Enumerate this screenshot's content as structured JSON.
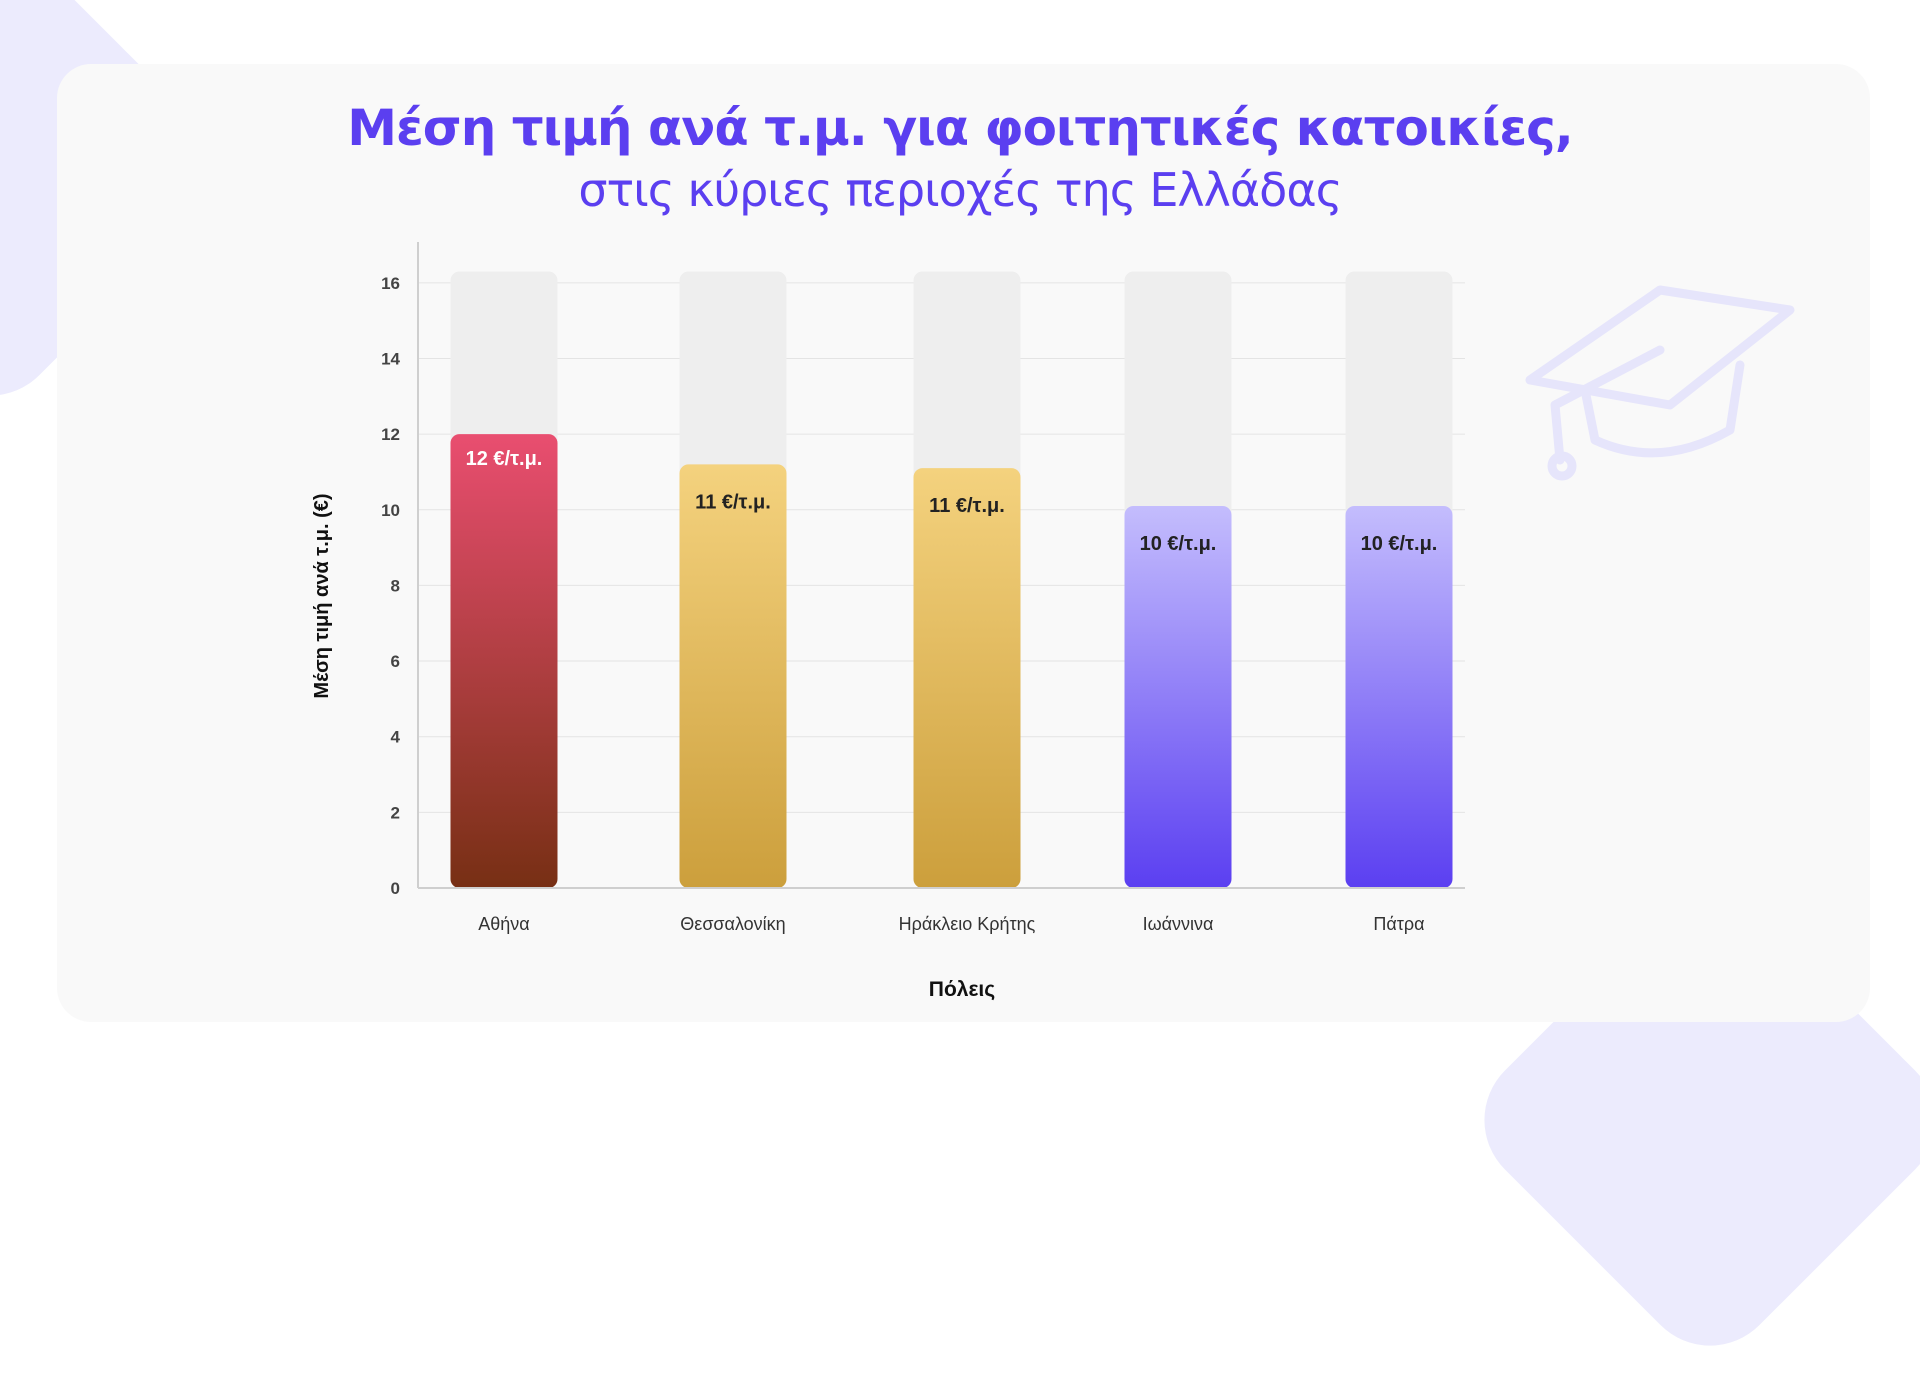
{
  "header": {
    "title": "Μέση τιμή ανά τ.μ. για φοιτητικές κατοικίες,",
    "subtitle": "στις κύριες περιοχές της Ελλάδας"
  },
  "icons": {
    "decoration": "graduation-cap-icon"
  },
  "colors": {
    "title": "#5b3ff0",
    "track": "#eeeeee",
    "red_top": "#e94e70",
    "red_bottom": "#772f14",
    "gold_top": "#f4d27e",
    "gold_bottom": "#cc9f3c",
    "purple_top": "#c4bdfd",
    "purple_bottom": "#5b3ff1"
  },
  "chart_data": {
    "type": "bar",
    "categories": [
      "Αθήνα",
      "Θεσσαλονίκη",
      "Ηράκλειο Κρήτης",
      "Ιωάννινα",
      "Πάτρα"
    ],
    "values": [
      12,
      11.2,
      11.1,
      10.1,
      10.1
    ],
    "labels": [
      "12 €/τ.μ.",
      "11 €/τ.μ.",
      "11 €/τ.μ.",
      "10 €/τ.μ.",
      "10 €/τ.μ."
    ],
    "track_max": 16.3,
    "xlabel": "Πόλεις",
    "ylabel": "Μέση τιμή ανά τ.μ. (€)",
    "ylim": [
      0,
      17
    ],
    "yticks": [
      0,
      2,
      4,
      6,
      8,
      10,
      12,
      14,
      16
    ],
    "grid": true,
    "bar_colors": [
      "red",
      "gold",
      "gold",
      "purple",
      "purple"
    ],
    "label_colors": [
      "#ffffff",
      "#222222",
      "#222222",
      "#222222",
      "#222222"
    ]
  }
}
